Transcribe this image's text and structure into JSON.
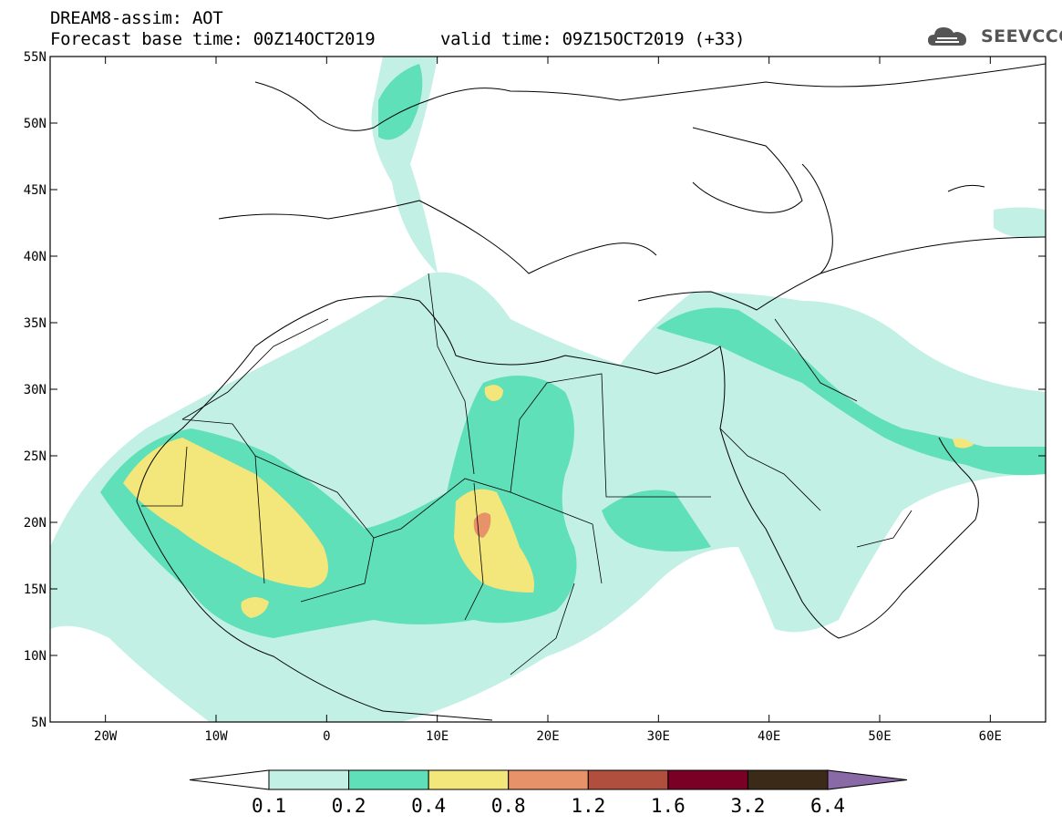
{
  "header": {
    "title": "DREAM8-assim: AOT",
    "base_time": "Forecast base time: 00Z14OCT2019",
    "valid_time": "valid time: 09Z15OCT2019 (+33)"
  },
  "logo": {
    "text": "SEEVCCC",
    "icon": "cloud-logo-icon",
    "color": "#555555"
  },
  "map": {
    "lat_labels": [
      "55N",
      "50N",
      "45N",
      "40N",
      "35N",
      "30N",
      "25N",
      "20N",
      "15N",
      "10N",
      "5N"
    ],
    "lon_labels": [
      "20W",
      "10W",
      "0",
      "10E",
      "20E",
      "30E",
      "40E",
      "50E",
      "60E"
    ],
    "lat_range": [
      5,
      55
    ],
    "lon_range": [
      -25,
      65
    ]
  },
  "colorbar": {
    "labels": [
      "0.1",
      "0.2",
      "0.4",
      "0.8",
      "1.2",
      "1.6",
      "3.2",
      "6.4"
    ],
    "colors": [
      "#ffffff",
      "#c2f0e4",
      "#5fe0b8",
      "#f3e67b",
      "#e8926a",
      "#b04f3e",
      "#7a0026",
      "#3b2a18",
      "#8a6aa6"
    ]
  },
  "chart_data": {
    "type": "heatmap",
    "title": "DREAM8-assim: AOT",
    "variable": "AOT",
    "levels": [
      0.1,
      0.2,
      0.4,
      0.8,
      1.2,
      1.6,
      3.2,
      6.4
    ],
    "xlim": [
      -25,
      65
    ],
    "ylim": [
      5,
      55
    ]
  }
}
